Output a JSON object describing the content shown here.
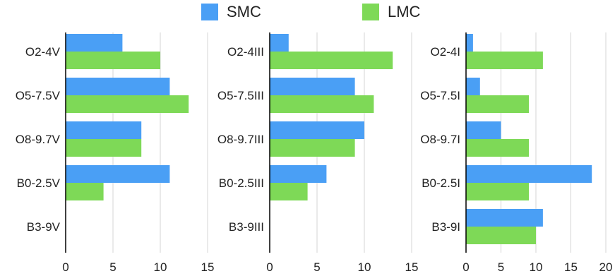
{
  "colors": {
    "SMC": "#4a9ff5",
    "LMC": "#7ed957",
    "grid": "#d4d4d4",
    "axis": "#000000",
    "text": "#222222"
  },
  "legend": [
    {
      "name": "SMC",
      "color": "#4a9ff5"
    },
    {
      "name": "LMC",
      "color": "#7ed957"
    }
  ],
  "chart_data": [
    {
      "type": "bar",
      "orientation": "horizontal",
      "categories": [
        "O2-4V",
        "O5-7.5V",
        "O8-9.7V",
        "B0-2.5V",
        "B3-9V"
      ],
      "series": [
        {
          "name": "SMC",
          "values": [
            6,
            11,
            8,
            11,
            0
          ]
        },
        {
          "name": "LMC",
          "values": [
            10,
            13,
            8,
            4,
            0
          ]
        }
      ],
      "xlim": [
        0,
        15
      ],
      "xticks": [
        0,
        5,
        10,
        15
      ],
      "grid": true
    },
    {
      "type": "bar",
      "orientation": "horizontal",
      "categories": [
        "O2-4III",
        "O5-7.5III",
        "O8-9.7III",
        "B0-2.5III",
        "B3-9III"
      ],
      "series": [
        {
          "name": "SMC",
          "values": [
            2,
            9,
            10,
            6,
            0
          ]
        },
        {
          "name": "LMC",
          "values": [
            13,
            11,
            9,
            4,
            0
          ]
        }
      ],
      "xlim": [
        0,
        15
      ],
      "xticks": [
        0,
        5,
        10,
        15
      ],
      "grid": true
    },
    {
      "type": "bar",
      "orientation": "horizontal",
      "categories": [
        "O2-4I",
        "O5-7.5I",
        "O8-9.7I",
        "B0-2.5I",
        "B3-9I"
      ],
      "series": [
        {
          "name": "SMC",
          "values": [
            1,
            2,
            5,
            18,
            11
          ]
        },
        {
          "name": "LMC",
          "values": [
            11,
            9,
            9,
            9,
            10
          ]
        }
      ],
      "xlim": [
        0,
        20
      ],
      "xticks": [
        0,
        5,
        10,
        15,
        20
      ],
      "grid": true
    }
  ]
}
